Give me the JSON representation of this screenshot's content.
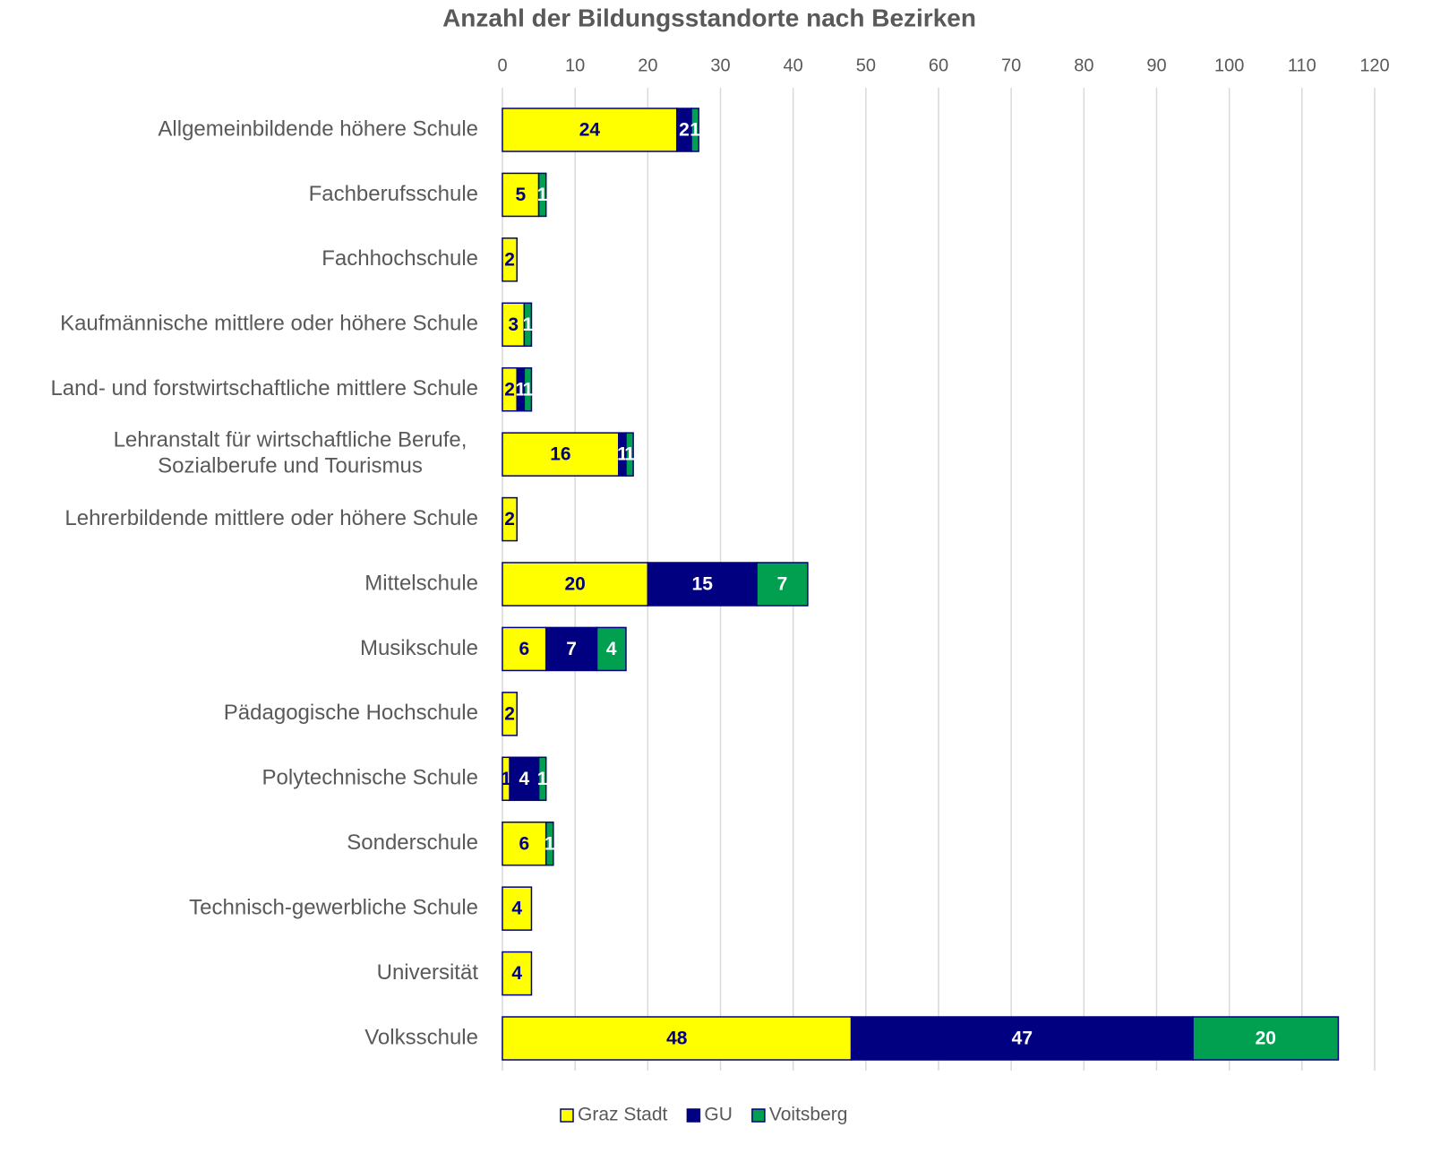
{
  "chart_data": {
    "type": "stacked_barh",
    "title": "Anzahl der Bildungsstandorte nach Bezirken",
    "categories": [
      "Allgemeinbildende höhere Schule",
      "Fachberufsschule",
      "Fachhochschule",
      "Kaufmännische mittlere oder höhere Schule",
      "Land- und forstwirtschaftliche mittlere Schule",
      "Lehranstalt für wirtschaftliche Berufe,\nSozialberufe und Tourismus",
      "Lehrerbildende mittlere oder höhere Schule",
      "Mittelschule",
      "Musikschule",
      "Pädagogische Hochschule",
      "Polytechnische Schule",
      "Sonderschule",
      "Technisch-gewerbliche Schule",
      "Universität",
      "Volksschule"
    ],
    "series": [
      {
        "name": "Graz Stadt",
        "color": "#ffff00",
        "values": [
          24,
          5,
          2,
          3,
          2,
          16,
          2,
          20,
          6,
          2,
          1,
          6,
          4,
          4,
          48
        ]
      },
      {
        "name": "GU",
        "color": "#000080",
        "values": [
          2,
          null,
          null,
          null,
          1,
          1,
          null,
          15,
          7,
          null,
          4,
          null,
          null,
          null,
          47
        ]
      },
      {
        "name": "Voitsberg",
        "color": "#00a050",
        "values": [
          1,
          1,
          null,
          1,
          1,
          1,
          null,
          7,
          4,
          null,
          1,
          1,
          null,
          null,
          20
        ]
      }
    ],
    "xlim": [
      0,
      120
    ],
    "xticks": [
      0,
      10,
      20,
      30,
      40,
      50,
      60,
      70,
      80,
      90,
      100,
      110,
      120
    ],
    "grid": true,
    "legend": "bottom"
  }
}
